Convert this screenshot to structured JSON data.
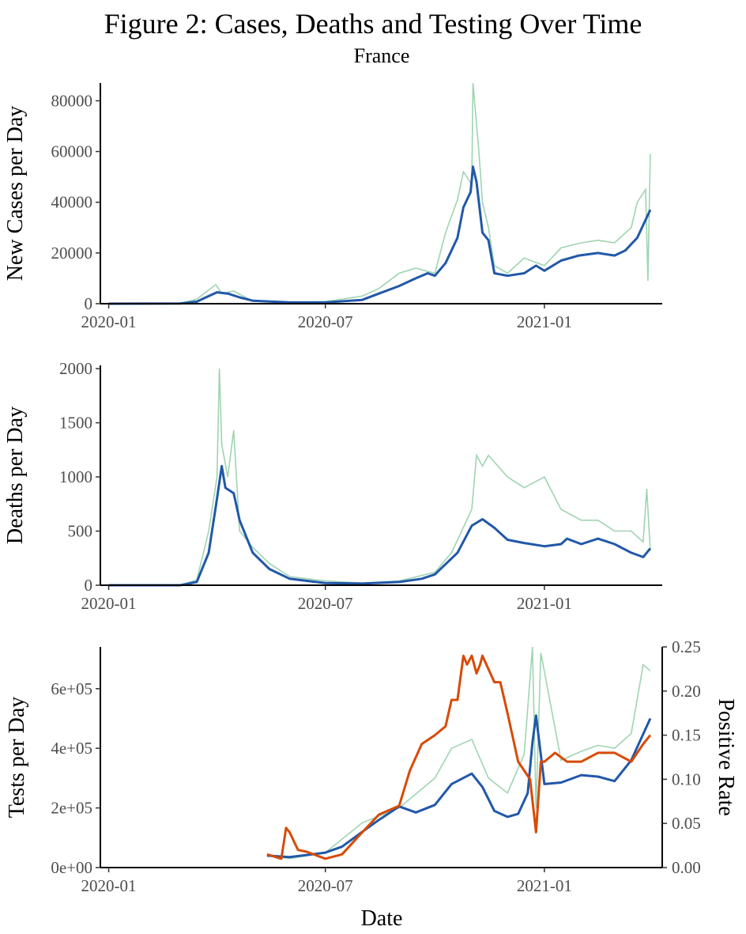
{
  "figure": {
    "title": "Figure 2: Cases, Deaths and Testing Over Time",
    "subtitle": "France",
    "xlabel": "Date"
  },
  "colors": {
    "raw": "#9fd4b1",
    "smooth": "#2158a8",
    "positive_rate": "#d84a06",
    "tests_label": "#2e5aa8",
    "rate_label": "#d84a06"
  },
  "chart_data": [
    {
      "type": "line",
      "ylabel": "New Cases per Day",
      "x_ticks": [
        "2020-01",
        "2020-07",
        "2021-01"
      ],
      "y_ticks": [
        "0",
        "20000",
        "40000",
        "60000",
        "80000"
      ],
      "xlim": [
        "2019-12-25",
        "2021-04-10"
      ],
      "ylim": [
        0,
        87000
      ],
      "grid": false,
      "series": [
        {
          "role": "raw",
          "x": [
            "2020-01-01",
            "2020-03-01",
            "2020-03-15",
            "2020-03-31",
            "2020-04-05",
            "2020-04-15",
            "2020-05-01",
            "2020-06-01",
            "2020-07-01",
            "2020-08-01",
            "2020-08-15",
            "2020-09-01",
            "2020-09-15",
            "2020-10-01",
            "2020-10-10",
            "2020-10-20",
            "2020-10-25",
            "2020-11-01",
            "2020-11-02",
            "2020-11-07",
            "2020-11-10",
            "2020-11-15",
            "2020-11-20",
            "2020-12-01",
            "2020-12-15",
            "2021-01-01",
            "2021-01-15",
            "2021-02-01",
            "2021-02-15",
            "2021-03-01",
            "2021-03-15",
            "2021-03-20",
            "2021-03-27",
            "2021-03-29",
            "2021-03-31"
          ],
          "y": [
            0,
            100,
            1800,
            7500,
            4000,
            5000,
            1000,
            500,
            800,
            3000,
            6000,
            12000,
            14000,
            12000,
            28000,
            41000,
            52000,
            47000,
            87000,
            60000,
            40000,
            30000,
            15000,
            12000,
            18000,
            15000,
            22000,
            24000,
            25000,
            24000,
            30000,
            40000,
            45000,
            9000,
            59000
          ]
        },
        {
          "role": "smoothed",
          "x": [
            "2020-01-01",
            "2020-03-01",
            "2020-03-15",
            "2020-03-25",
            "2020-04-01",
            "2020-04-10",
            "2020-04-20",
            "2020-05-01",
            "2020-06-01",
            "2020-07-01",
            "2020-08-01",
            "2020-08-15",
            "2020-09-01",
            "2020-09-15",
            "2020-09-25",
            "2020-10-01",
            "2020-10-10",
            "2020-10-20",
            "2020-10-25",
            "2020-10-31",
            "2020-11-02",
            "2020-11-05",
            "2020-11-10",
            "2020-11-15",
            "2020-11-20",
            "2020-12-01",
            "2020-12-15",
            "2020-12-25",
            "2021-01-01",
            "2021-01-15",
            "2021-01-30",
            "2021-02-15",
            "2021-03-01",
            "2021-03-10",
            "2021-03-20",
            "2021-03-31"
          ],
          "y": [
            0,
            50,
            800,
            3000,
            4500,
            4000,
            2500,
            1200,
            500,
            500,
            1500,
            4000,
            7000,
            10000,
            12000,
            11000,
            16000,
            26000,
            38000,
            44000,
            54000,
            48000,
            28000,
            25000,
            12000,
            11000,
            12000,
            15000,
            13000,
            17000,
            19000,
            20000,
            19000,
            21000,
            26000,
            37000
          ]
        }
      ]
    },
    {
      "type": "line",
      "ylabel": "Deaths per Day",
      "x_ticks": [
        "2020-01",
        "2020-07",
        "2021-01"
      ],
      "y_ticks": [
        "0",
        "500",
        "1000",
        "1500",
        "2000"
      ],
      "xlim": [
        "2019-12-25",
        "2021-04-10"
      ],
      "ylim": [
        0,
        2030
      ],
      "grid": false,
      "series": [
        {
          "role": "raw",
          "x": [
            "2020-01-01",
            "2020-03-01",
            "2020-03-15",
            "2020-03-25",
            "2020-04-01",
            "2020-04-03",
            "2020-04-05",
            "2020-04-10",
            "2020-04-15",
            "2020-04-20",
            "2020-05-01",
            "2020-05-15",
            "2020-06-01",
            "2020-07-01",
            "2020-08-01",
            "2020-09-01",
            "2020-10-01",
            "2020-10-15",
            "2020-11-01",
            "2020-11-05",
            "2020-11-10",
            "2020-11-15",
            "2020-12-01",
            "2020-12-15",
            "2021-01-01",
            "2021-01-15",
            "2021-02-01",
            "2021-02-15",
            "2021-03-01",
            "2021-03-15",
            "2021-03-25",
            "2021-03-28",
            "2021-03-31"
          ],
          "y": [
            0,
            0,
            50,
            500,
            1000,
            2000,
            1300,
            1000,
            1430,
            500,
            350,
            200,
            80,
            40,
            20,
            40,
            120,
            300,
            700,
            1200,
            1100,
            1200,
            1000,
            900,
            1000,
            700,
            600,
            600,
            500,
            500,
            400,
            890,
            320
          ]
        },
        {
          "role": "smoothed",
          "x": [
            "2020-01-01",
            "2020-03-01",
            "2020-03-15",
            "2020-03-25",
            "2020-04-01",
            "2020-04-05",
            "2020-04-08",
            "2020-04-15",
            "2020-04-20",
            "2020-05-01",
            "2020-05-15",
            "2020-06-01",
            "2020-07-01",
            "2020-08-01",
            "2020-09-01",
            "2020-09-20",
            "2020-10-01",
            "2020-10-20",
            "2020-11-01",
            "2020-11-10",
            "2020-11-20",
            "2020-12-01",
            "2020-12-15",
            "2021-01-01",
            "2021-01-15",
            "2021-01-20",
            "2021-02-01",
            "2021-02-15",
            "2021-03-01",
            "2021-03-15",
            "2021-03-25",
            "2021-03-31"
          ],
          "y": [
            0,
            0,
            30,
            300,
            800,
            1100,
            900,
            850,
            600,
            300,
            150,
            60,
            20,
            15,
            30,
            60,
            100,
            300,
            550,
            610,
            530,
            420,
            390,
            360,
            380,
            430,
            380,
            430,
            380,
            300,
            260,
            340
          ]
        }
      ]
    },
    {
      "type": "line",
      "ylabel": "Tests per Day",
      "ylabel_right": "Positive Rate",
      "x_ticks": [
        "2020-01",
        "2020-07",
        "2021-01"
      ],
      "y_ticks": [
        "0e+00",
        "2e+05",
        "4e+05",
        "6e+05"
      ],
      "y_ticks_right": [
        "0.00",
        "0.05",
        "0.10",
        "0.15",
        "0.20",
        "0.25"
      ],
      "xlim": [
        "2019-12-25",
        "2021-04-10"
      ],
      "ylim": [
        0,
        740000
      ],
      "ylim_right": [
        0,
        0.25
      ],
      "grid": false,
      "series": [
        {
          "role": "raw tests",
          "x": [
            "2020-05-13",
            "2020-06-01",
            "2020-07-01",
            "2020-08-01",
            "2020-09-01",
            "2020-10-01",
            "2020-10-15",
            "2020-11-01",
            "2020-11-15",
            "2020-12-01",
            "2020-12-15",
            "2020-12-22",
            "2020-12-25",
            "2020-12-29",
            "2021-01-15",
            "2021-02-01",
            "2021-02-15",
            "2021-03-01",
            "2021-03-15",
            "2021-03-25",
            "2021-03-31"
          ],
          "y": [
            40000,
            30000,
            50000,
            150000,
            200000,
            300000,
            400000,
            430000,
            300000,
            250000,
            380000,
            740000,
            200000,
            720000,
            360000,
            390000,
            410000,
            400000,
            450000,
            680000,
            660000
          ]
        },
        {
          "role": "smoothed tests",
          "x": [
            "2020-05-13",
            "2020-06-01",
            "2020-07-01",
            "2020-07-15",
            "2020-08-01",
            "2020-08-15",
            "2020-09-01",
            "2020-09-15",
            "2020-10-01",
            "2020-10-15",
            "2020-11-01",
            "2020-11-10",
            "2020-11-20",
            "2020-12-01",
            "2020-12-10",
            "2020-12-18",
            "2020-12-22",
            "2020-12-25",
            "2021-01-01",
            "2021-01-15",
            "2021-02-01",
            "2021-02-15",
            "2021-03-01",
            "2021-03-15",
            "2021-03-31"
          ],
          "y": [
            40000,
            35000,
            50000,
            70000,
            120000,
            160000,
            205000,
            185000,
            210000,
            280000,
            315000,
            270000,
            190000,
            170000,
            180000,
            250000,
            420000,
            510000,
            280000,
            285000,
            310000,
            305000,
            290000,
            360000,
            500000
          ]
        },
        {
          "role": "positive rate (right axis)",
          "x": [
            "2020-05-13",
            "2020-05-25",
            "2020-05-29",
            "2020-06-01",
            "2020-06-08",
            "2020-06-15",
            "2020-07-01",
            "2020-07-15",
            "2020-08-01",
            "2020-08-15",
            "2020-09-01",
            "2020-09-10",
            "2020-09-20",
            "2020-10-01",
            "2020-10-10",
            "2020-10-15",
            "2020-10-20",
            "2020-10-25",
            "2020-10-28",
            "2020-11-01",
            "2020-11-05",
            "2020-11-08",
            "2020-11-10",
            "2020-11-20",
            "2020-11-25",
            "2020-12-01",
            "2020-12-10",
            "2020-12-20",
            "2020-12-25",
            "2020-12-29",
            "2021-01-01",
            "2021-01-10",
            "2021-01-20",
            "2021-02-01",
            "2021-02-15",
            "2021-03-01",
            "2021-03-15",
            "2021-03-25",
            "2021-03-31"
          ],
          "y": [
            0.015,
            0.01,
            0.045,
            0.04,
            0.02,
            0.018,
            0.01,
            0.015,
            0.04,
            0.06,
            0.07,
            0.11,
            0.14,
            0.15,
            0.16,
            0.19,
            0.19,
            0.24,
            0.23,
            0.24,
            0.22,
            0.23,
            0.24,
            0.21,
            0.21,
            0.175,
            0.12,
            0.1,
            0.04,
            0.12,
            0.12,
            0.13,
            0.12,
            0.12,
            0.13,
            0.13,
            0.12,
            0.14,
            0.15
          ]
        }
      ]
    }
  ]
}
